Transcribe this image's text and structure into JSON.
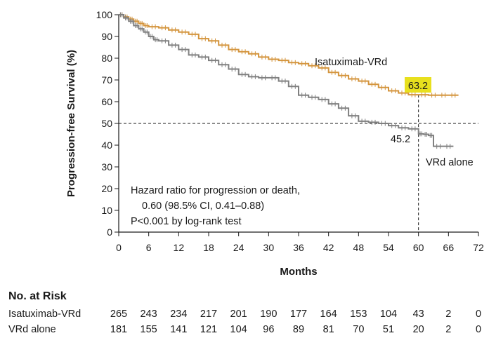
{
  "chart_data": {
    "type": "line",
    "title": "",
    "xlabel": "Months",
    "ylabel": "Progression-free Survival (%)",
    "xlim": [
      0,
      72
    ],
    "ylim": [
      0,
      100
    ],
    "xticks": [
      0,
      6,
      12,
      18,
      24,
      30,
      36,
      42,
      48,
      54,
      60,
      66,
      72
    ],
    "yticks": [
      0,
      10,
      20,
      30,
      40,
      50,
      60,
      70,
      80,
      90,
      100
    ],
    "grid": false,
    "series": [
      {
        "name": "Isatuximab-VRd",
        "color": "#D4953E",
        "x": [
          0,
          1,
          2,
          3,
          4,
          5,
          6,
          8,
          10,
          12,
          14,
          16,
          18,
          20,
          22,
          24,
          26,
          28,
          30,
          32,
          34,
          36,
          38,
          40,
          42,
          44,
          46,
          48,
          50,
          52,
          54,
          56,
          58,
          60,
          62,
          64,
          66,
          68
        ],
        "y": [
          100,
          99,
          98,
          97,
          96,
          95,
          94.5,
          94,
          93,
          92,
          91,
          89,
          88,
          86,
          84,
          83,
          82,
          80.5,
          79.5,
          79,
          78,
          77.5,
          76.5,
          75.5,
          73.5,
          72,
          70.5,
          69.5,
          68,
          66.5,
          65,
          64,
          63.2,
          63.2,
          63,
          63,
          63,
          63
        ]
      },
      {
        "name": "VRd alone",
        "color": "#808080",
        "x": [
          0,
          1,
          2,
          3,
          4,
          5,
          6,
          7,
          8,
          10,
          12,
          14,
          16,
          18,
          20,
          22,
          24,
          26,
          28,
          30,
          32,
          34,
          36,
          38,
          40,
          42,
          44,
          46,
          48,
          50,
          52,
          54,
          56,
          58,
          60,
          61,
          62,
          63,
          65,
          67
        ],
        "y": [
          100,
          98.5,
          97,
          95,
          93.5,
          92,
          90,
          88.5,
          88,
          86,
          84,
          81.5,
          80.5,
          79,
          77,
          75,
          72.5,
          71.5,
          71,
          71,
          69.5,
          67,
          63,
          62,
          61,
          59,
          57,
          53.5,
          51,
          50.5,
          50,
          49,
          48,
          47.5,
          45.2,
          45,
          44.5,
          39.5,
          39.5,
          39.5
        ]
      }
    ],
    "reference_line": {
      "y": 50,
      "x_drop": 60,
      "style": "dashed"
    },
    "annotations": {
      "isatuximab_value": "63.2",
      "vrd_value": "45.2",
      "isatuximab_label": "Isatuximab-VRd",
      "vrd_label": "VRd alone",
      "hr_line1": "Hazard ratio for progression or death,",
      "hr_line2": "0.60 (98.5% CI, 0.41–0.88)",
      "p_line": "P<0.001 by log-rank test"
    }
  },
  "risk_table": {
    "title": "No. at Risk",
    "rows": [
      {
        "label": "Isatuximab-VRd",
        "values": [
          "265",
          "243",
          "234",
          "217",
          "201",
          "190",
          "177",
          "164",
          "153",
          "104",
          "43",
          "2",
          "0"
        ]
      },
      {
        "label": "VRd alone",
        "values": [
          "181",
          "155",
          "141",
          "121",
          "104",
          "96",
          "89",
          "81",
          "70",
          "51",
          "20",
          "2",
          "0"
        ]
      }
    ]
  },
  "colors": {
    "highlight": "#E8E01E",
    "axis": "#1a1a1a"
  }
}
